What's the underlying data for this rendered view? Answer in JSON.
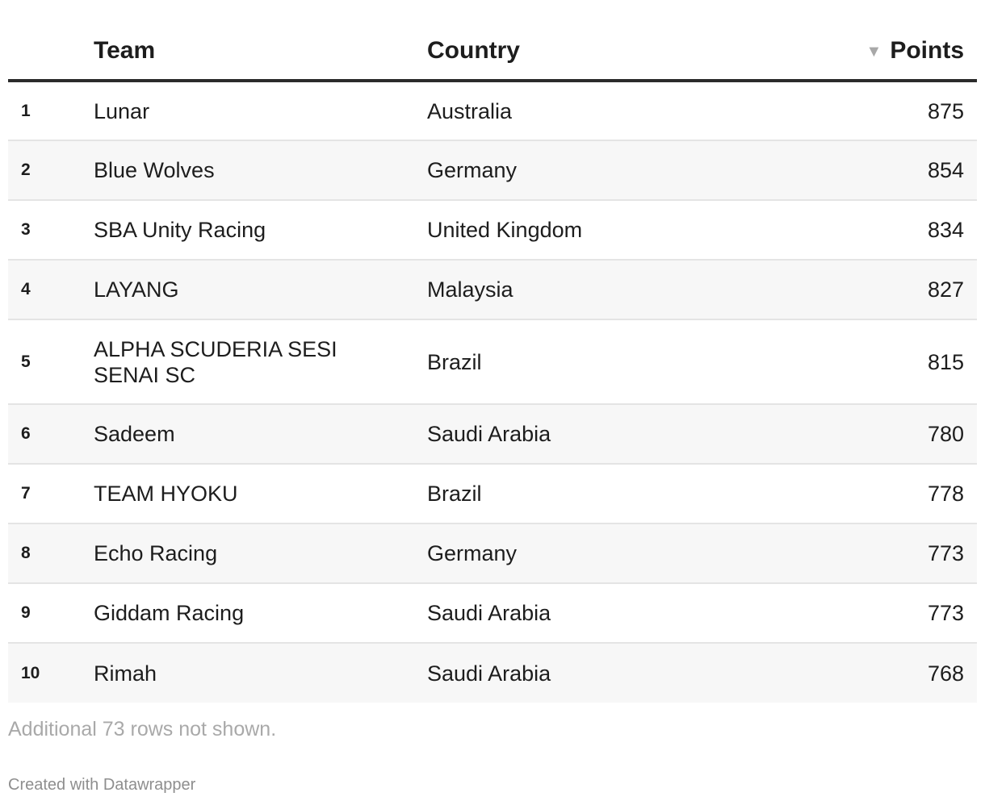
{
  "chart_data": {
    "type": "table",
    "columns": [
      "",
      "Team",
      "Country",
      "Points"
    ],
    "sorted_by": "Points",
    "sort_order": "descending",
    "rows": [
      {
        "rank": "1",
        "team": "Lunar",
        "country": "Australia",
        "points": "875"
      },
      {
        "rank": "2",
        "team": "Blue Wolves",
        "country": "Germany",
        "points": "854"
      },
      {
        "rank": "3",
        "team": "SBA Unity Racing",
        "country": "United Kingdom",
        "points": "834"
      },
      {
        "rank": "4",
        "team": "LAYANG",
        "country": "Malaysia",
        "points": "827"
      },
      {
        "rank": "5",
        "team": "ALPHA SCUDERIA SESI SENAI SC",
        "country": "Brazil",
        "points": "815"
      },
      {
        "rank": "6",
        "team": "Sadeem",
        "country": "Saudi Arabia",
        "points": "780"
      },
      {
        "rank": "7",
        "team": "TEAM HYOKU",
        "country": "Brazil",
        "points": "778"
      },
      {
        "rank": "8",
        "team": "Echo Racing",
        "country": "Germany",
        "points": "773"
      },
      {
        "rank": "9",
        "team": "Giddam Racing",
        "country": "Saudi Arabia",
        "points": "773"
      },
      {
        "rank": "10",
        "team": "Rimah",
        "country": "Saudi Arabia",
        "points": "768"
      }
    ],
    "footer_note": "Additional 73 rows not shown.",
    "credit": "Created with Datawrapper"
  },
  "icons": {
    "sort": "sort-descending-icon"
  },
  "colors": {
    "header_rule": "#2b2b2b",
    "row_stripe": "#f7f7f7",
    "row_divider": "#e4e4e4",
    "muted_text": "#a9a9a9"
  }
}
